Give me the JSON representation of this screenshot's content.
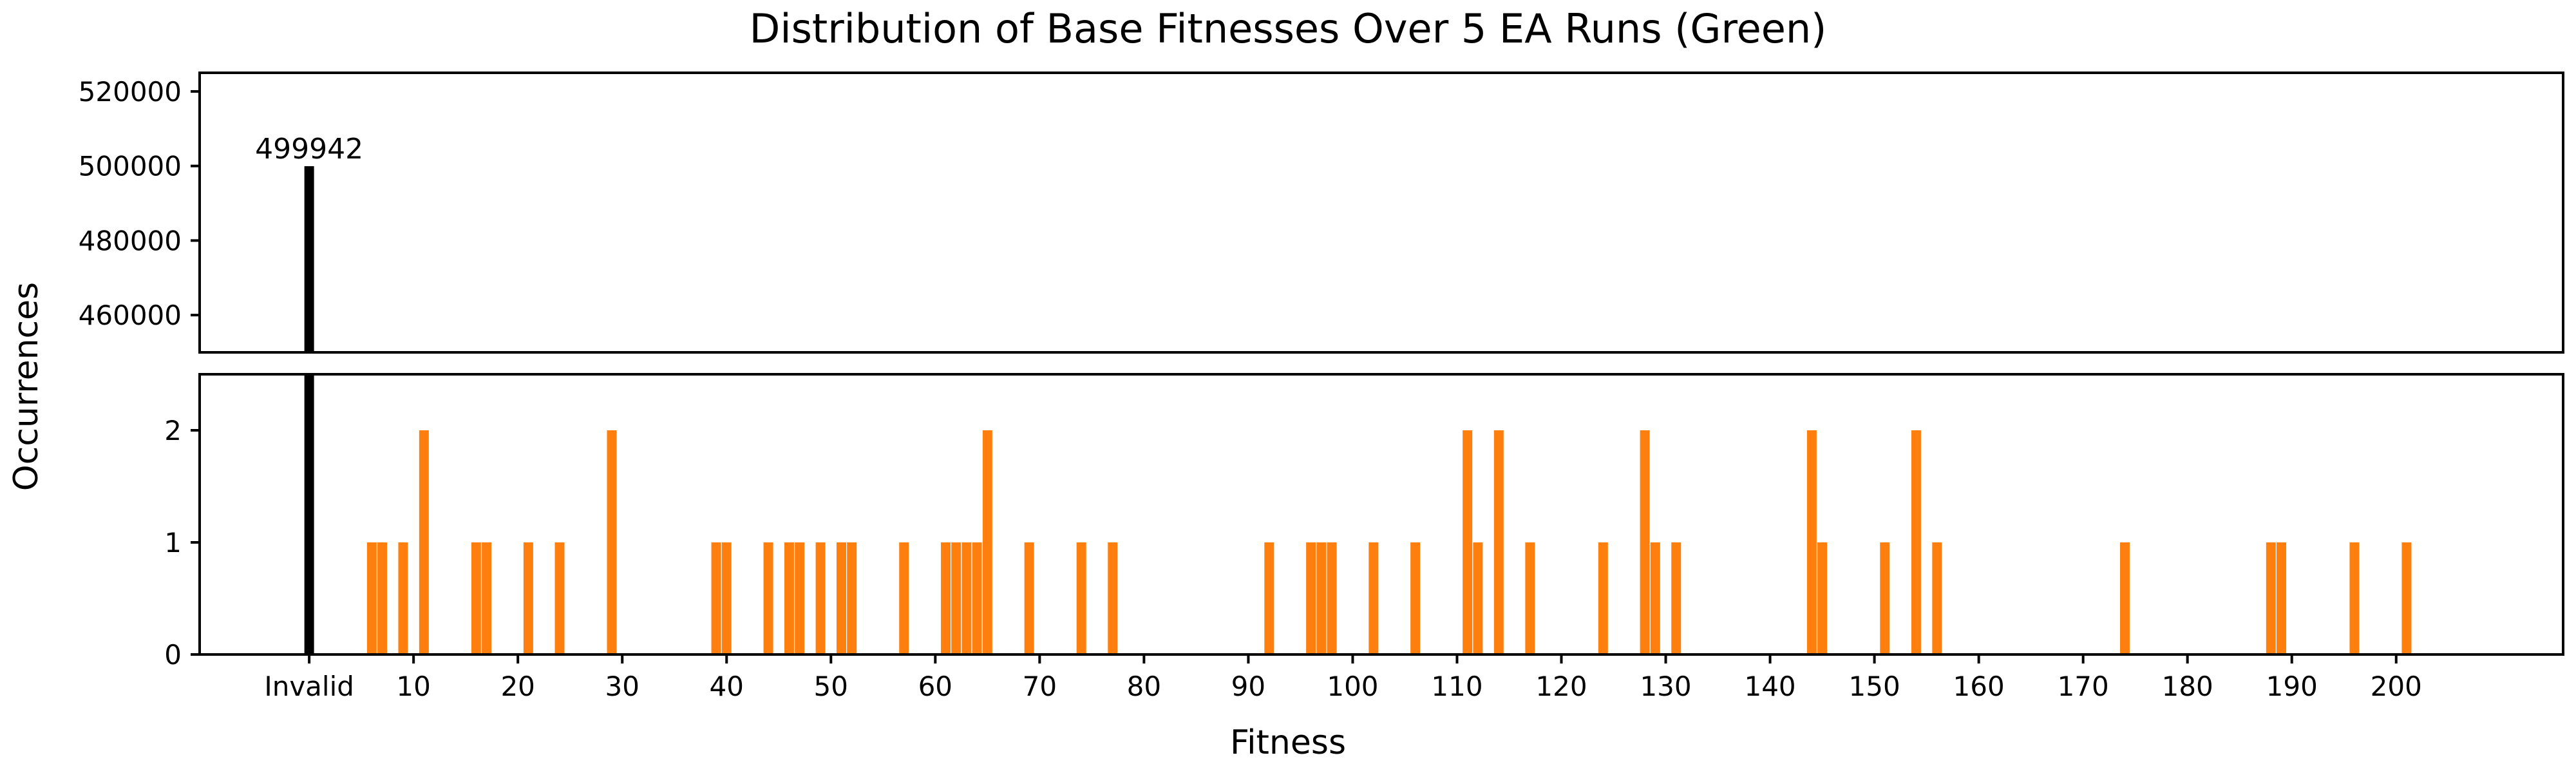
{
  "chart_data": {
    "type": "bar",
    "title": "Distribution of Base Fitnesses Over 5 EA Runs (Green)",
    "xlabel": "Fitness",
    "ylabel": "Occurrences",
    "x_invalid_label": "Invalid",
    "x_invalid_position": 0,
    "xlim": [
      -10.5,
      216
    ],
    "x_ticks": [
      10,
      20,
      30,
      40,
      50,
      60,
      70,
      80,
      90,
      100,
      110,
      120,
      130,
      140,
      150,
      160,
      170,
      180,
      190,
      200
    ],
    "broken_y_axis": true,
    "top_ylim": [
      450000,
      525000
    ],
    "top_y_ticks": [
      460000,
      480000,
      500000,
      520000
    ],
    "bottom_ylim": [
      0,
      2.5
    ],
    "bottom_y_ticks": [
      0,
      1,
      2
    ],
    "colors": {
      "invalid": "#000000",
      "valid": "#ff7f0e"
    },
    "invalid": {
      "label": "Invalid",
      "value": 499942,
      "data_label": "499942"
    },
    "valid": {
      "x": [
        6,
        7,
        9,
        11,
        16,
        17,
        21,
        24,
        29,
        39,
        40,
        44,
        46,
        47,
        49,
        51,
        52,
        57,
        61,
        62,
        63,
        64,
        65,
        69,
        74,
        77,
        92,
        96,
        97,
        98,
        102,
        106,
        111,
        112,
        114,
        117,
        124,
        128,
        129,
        131,
        144,
        145,
        151,
        154,
        156,
        174,
        188,
        189,
        196,
        201
      ],
      "values": [
        1,
        1,
        1,
        2,
        1,
        1,
        1,
        1,
        2,
        1,
        1,
        1,
        1,
        1,
        1,
        1,
        1,
        1,
        1,
        1,
        1,
        1,
        2,
        1,
        1,
        1,
        1,
        1,
        1,
        1,
        1,
        1,
        2,
        1,
        2,
        1,
        1,
        2,
        1,
        1,
        2,
        1,
        1,
        2,
        1,
        1,
        1,
        1,
        1,
        1
      ]
    }
  }
}
